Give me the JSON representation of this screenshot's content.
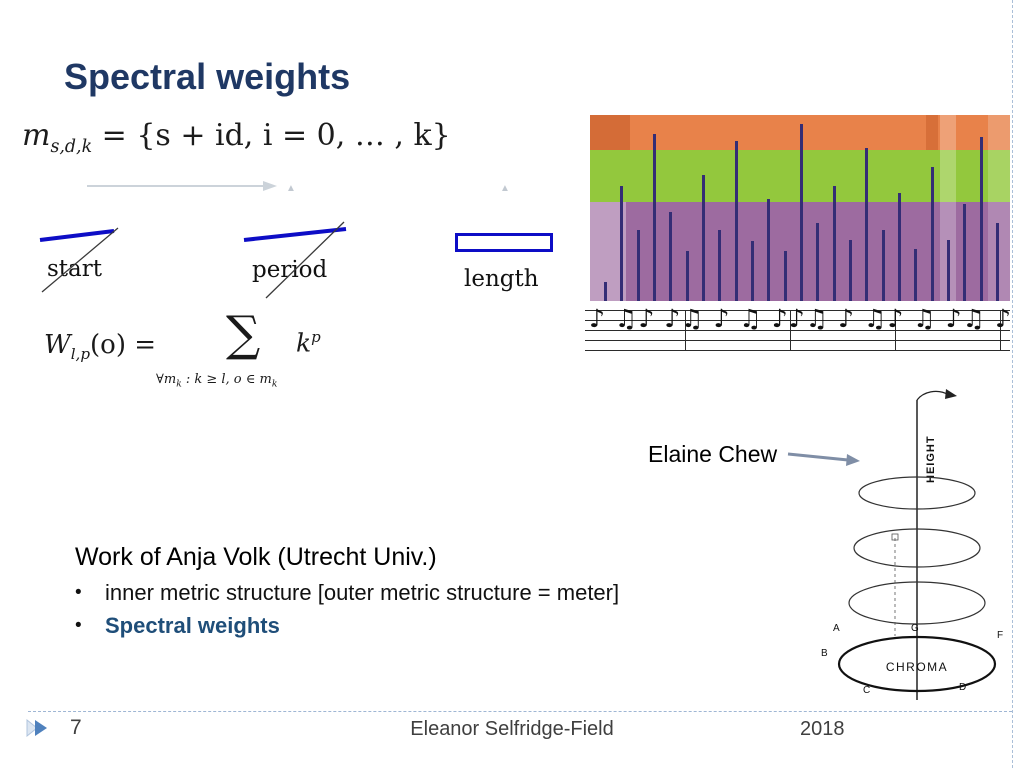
{
  "slide_title": "Spectral weights",
  "formula_m": {
    "var": "m",
    "sub": "s,d,k",
    "rest": " = {s + id,  i = 0, … , k}"
  },
  "timeline_labels": {
    "start": "start",
    "period": "period",
    "length": "length"
  },
  "caret_glyph": "▲",
  "formula_w": {
    "var": "W",
    "sub": "l,p",
    "arg": "(o) =",
    "sigma": "∑",
    "cond_pre": "∀m",
    "cond_sub": "k",
    "cond_mid": " : k ≥ l, o ∈ m",
    "term": "k",
    "term_sup": "p"
  },
  "annotation": {
    "elaine_chew": "Elaine Chew"
  },
  "score": {
    "notes": "♪ ♫♪ ♪♫ ♪ ♫ ♪♪♫ ♪ ♫♪ ♫ ♪♫ ♪ ♫ ♪♪ ♫♪ ♫"
  },
  "spiral": {
    "height_label": "HEIGHT",
    "chroma_label": "CHROMA",
    "letters": [
      "A",
      "G",
      "F",
      "B",
      "C",
      "D"
    ]
  },
  "work_block": {
    "heading": "Work of Anja Volk (Utrecht Univ.)",
    "bullet_char": "•",
    "bullets": [
      "inner metric structure [outer metric structure = meter]",
      "Spectral weights"
    ]
  },
  "footer": {
    "page_number": "7",
    "author": "Eleanor Selfridge-Field",
    "year": "2018"
  },
  "chart_data": {
    "type": "bar",
    "title": "",
    "xlabel": "",
    "ylabel": "",
    "bands": [
      {
        "color": "#e8824a",
        "from": 0.0,
        "to": 0.19
      },
      {
        "color": "#93c83d",
        "from": 0.19,
        "to": 0.47
      },
      {
        "color": "#9d6ba0",
        "from": 0.47,
        "to": 1.0
      }
    ],
    "bar_color": "#342d75",
    "values": [
      0.1,
      0.62,
      0.38,
      0.9,
      0.48,
      0.27,
      0.68,
      0.38,
      0.86,
      0.32,
      0.55,
      0.27,
      0.95,
      0.42,
      0.62,
      0.33,
      0.82,
      0.38,
      0.58,
      0.28,
      0.72,
      0.33,
      0.52,
      0.88,
      0.42
    ]
  }
}
